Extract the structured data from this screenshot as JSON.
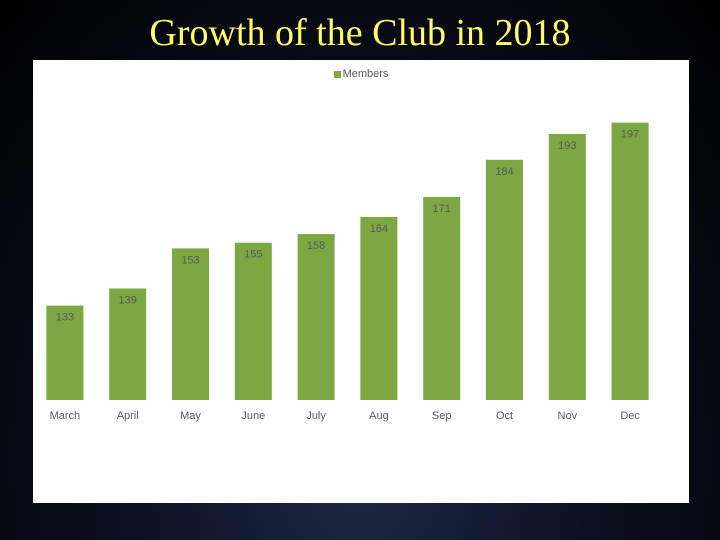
{
  "slide": {
    "title": "Growth of the Club in 2018"
  },
  "colors": {
    "bar": "#7da743",
    "bar_edge": "#6b9238",
    "label": "#595959"
  },
  "chart_data": {
    "type": "bar",
    "title": "",
    "xlabel": "",
    "ylabel": "",
    "categories": [
      "March",
      "April",
      "May",
      "June",
      "July",
      "Aug",
      "Sep",
      "Oct",
      "Nov",
      "Dec"
    ],
    "series": [
      {
        "name": "Members",
        "values": [
          133,
          139,
          153,
          155,
          158,
          164,
          171,
          184,
          193,
          197
        ]
      }
    ],
    "ylim": [
      100,
      200
    ],
    "grid": false,
    "legend": "top"
  }
}
